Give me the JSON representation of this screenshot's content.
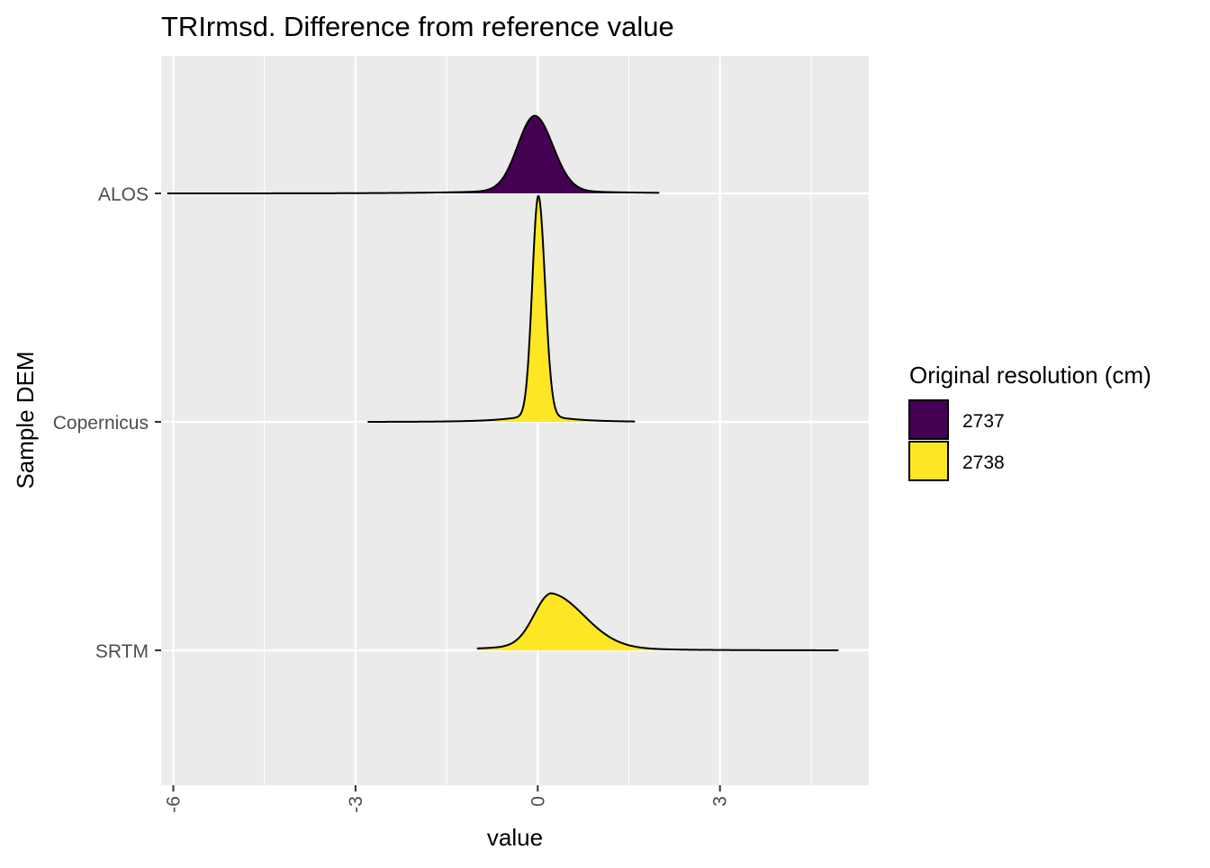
{
  "chart_data": {
    "type": "ridgeline-density",
    "title": "TRIrmsd. Difference from reference value",
    "xlabel": "value",
    "ylabel": "Sample DEM",
    "xlim": [
      -6.2,
      5.45
    ],
    "x_ticks": [
      -6,
      -3,
      0,
      3
    ],
    "x_tick_labels": [
      "-6",
      "-3",
      "0",
      "3"
    ],
    "categories": [
      "ALOS",
      "Copernicus",
      "SRTM"
    ],
    "grid": true,
    "legend": {
      "title": "Original resolution (cm)",
      "position": "right",
      "entries": [
        {
          "label": "2737",
          "color": "#440154"
        },
        {
          "label": "2738",
          "color": "#FDE725"
        }
      ]
    },
    "series": [
      {
        "category": "ALOS",
        "legend": "2737",
        "color": "#440154",
        "x_range": [
          -6.1,
          2.0
        ],
        "peak_x": -0.05,
        "left_sigma": 0.28,
        "right_sigma": 0.3,
        "tail": 0.06,
        "tail_scale": 1.0,
        "peak_height": 0.34
      },
      {
        "category": "Copernicus",
        "legend": "2738",
        "color": "#FDE725",
        "x_range": [
          -2.8,
          1.6
        ],
        "peak_x": 0.01,
        "left_sigma": 0.1,
        "right_sigma": 0.11,
        "tail": 0.04,
        "tail_scale": 0.5,
        "peak_height": 0.99
      },
      {
        "category": "SRTM",
        "legend": "2738",
        "color": "#FDE725",
        "x_range": [
          -1.0,
          4.95
        ],
        "peak_x": 0.22,
        "left_sigma": 0.28,
        "right_sigma": 0.55,
        "tail": 0.15,
        "tail_scale": 0.9,
        "peak_height": 0.25
      }
    ]
  }
}
